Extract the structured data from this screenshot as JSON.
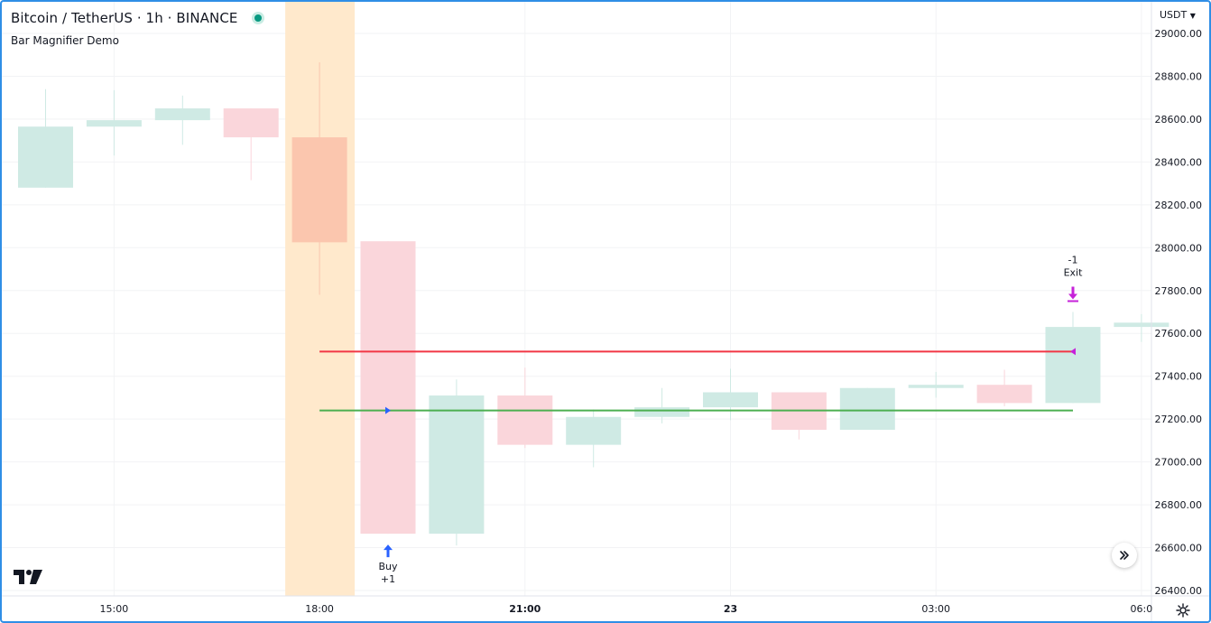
{
  "header": {
    "symbol_title": "Bitcoin / TetherUS · 1h · BINANCE",
    "indicator_name": "Bar Magnifier Demo",
    "currency": "USDT"
  },
  "chart_data": {
    "type": "candlestick",
    "title": "Bitcoin / TetherUS · 1h · BINANCE",
    "ylim": [
      26400,
      29000
    ],
    "y_ticks": [
      "29000.00",
      "28800.00",
      "28600.00",
      "28400.00",
      "28200.00",
      "28000.00",
      "27800.00",
      "27600.00",
      "27400.00",
      "27200.00",
      "27000.00",
      "26800.00",
      "26600.00",
      "26400.00"
    ],
    "y_tick_values": [
      29000,
      28800,
      28600,
      28400,
      28200,
      28000,
      27800,
      27600,
      27400,
      27200,
      27000,
      26800,
      26600,
      26400
    ],
    "x_ticks": [
      {
        "label": "15:00",
        "bar": 1.0,
        "bold": false
      },
      {
        "label": "18:00",
        "bar": 4.0,
        "bold": false
      },
      {
        "label": "21:00",
        "bar": 7.0,
        "bold": true
      },
      {
        "label": "23",
        "bar": 10.0,
        "bold": true
      },
      {
        "label": "03:00",
        "bar": 13.0,
        "bold": false
      },
      {
        "label": "06:0",
        "bar": 16.0,
        "bold": false
      }
    ],
    "grid": true,
    "candles": [
      {
        "o": 28280,
        "h": 28740,
        "l": 28280,
        "c": 28565
      },
      {
        "o": 28565,
        "h": 28735,
        "l": 28430,
        "c": 28595
      },
      {
        "o": 28595,
        "h": 28710,
        "l": 28480,
        "c": 28650
      },
      {
        "o": 28650,
        "h": 28650,
        "l": 28315,
        "c": 28515
      },
      {
        "o": 28515,
        "h": 28865,
        "l": 27780,
        "c": 28025
      },
      {
        "o": 28030,
        "h": 28030,
        "l": 26665,
        "c": 26665
      },
      {
        "o": 26665,
        "h": 27385,
        "l": 26610,
        "c": 27310
      },
      {
        "o": 27310,
        "h": 27440,
        "l": 27065,
        "c": 27080
      },
      {
        "o": 27080,
        "h": 27245,
        "l": 26975,
        "c": 27210
      },
      {
        "o": 27210,
        "h": 27345,
        "l": 27180,
        "c": 27255
      },
      {
        "o": 27255,
        "h": 27435,
        "l": 27195,
        "c": 27325
      },
      {
        "o": 27325,
        "h": 27325,
        "l": 27105,
        "c": 27150
      },
      {
        "o": 27150,
        "h": 27345,
        "l": 27150,
        "c": 27345
      },
      {
        "o": 27345,
        "h": 27420,
        "l": 27300,
        "c": 27360
      },
      {
        "o": 27360,
        "h": 27430,
        "l": 27260,
        "c": 27275
      },
      {
        "o": 27275,
        "h": 27700,
        "l": 27275,
        "c": 27630
      },
      {
        "o": 27630,
        "h": 27690,
        "l": 27560,
        "c": 27650
      }
    ],
    "highlighted_bar": 4,
    "lines": [
      {
        "name": "stop",
        "color": "#f23645",
        "y": 27515,
        "from_bar": 4,
        "to_bar": 15
      },
      {
        "name": "entry",
        "color": "#4caf50",
        "y": 27240,
        "from_bar": 4,
        "to_bar": 15
      }
    ],
    "entry_marker": {
      "bar": 5,
      "y": 27240,
      "label_top": "Buy",
      "label_bottom": "+1"
    },
    "exit_marker": {
      "bar": 15,
      "y": 27515,
      "label_top": "-1",
      "label_bottom": "Exit"
    },
    "colors": {
      "up": "#cfeae4",
      "down": "#fad6db",
      "highlight_candle": "#fbc6ae",
      "highlight_band": "#ffe9cc",
      "entry": "#2962ff",
      "exit": "#c622d9",
      "grid": "#f2f3f5"
    }
  }
}
